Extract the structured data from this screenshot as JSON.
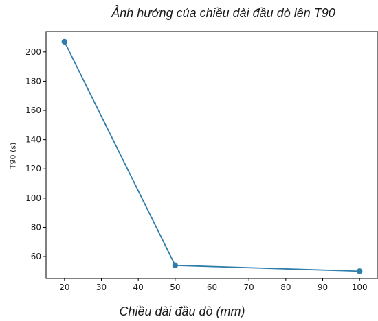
{
  "chart_data": {
    "type": "line",
    "title": "Ảnh hưởng của chiều dài đầu dò lên T90",
    "xlabel": "Chiều dài đầu dò (mm)",
    "ylabel": "T90 (s)",
    "x": [
      20,
      50,
      100
    ],
    "series": [
      {
        "values": [
          207,
          54,
          50
        ],
        "color": "#2e7dab"
      }
    ],
    "xlim": [
      15,
      105
    ],
    "ylim": [
      45,
      214
    ],
    "xticks": [
      20,
      30,
      40,
      50,
      60,
      70,
      80,
      90,
      100
    ],
    "yticks": [
      60,
      80,
      100,
      120,
      140,
      160,
      180,
      200
    ],
    "grid": false,
    "marker": "circle"
  }
}
